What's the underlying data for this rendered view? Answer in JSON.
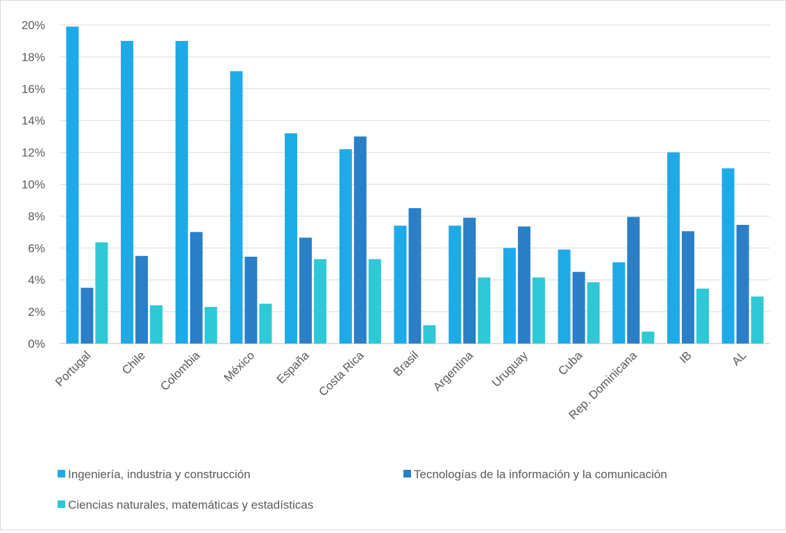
{
  "chart_data": {
    "type": "bar",
    "categories": [
      "Portugal",
      "Chile",
      "Colombia",
      "México",
      "España",
      "Costa Rica",
      "Brasil",
      "Argentina",
      "Uruguay",
      "Cuba",
      "Rep. Dominicana",
      "IB",
      "AL"
    ],
    "series": [
      {
        "name": "Ingeniería, industria y construcción",
        "color": "#1eaae7",
        "values": [
          19.9,
          19.0,
          19.0,
          17.1,
          13.2,
          12.2,
          7.4,
          7.4,
          6.0,
          5.9,
          5.1,
          12.0,
          11.0
        ]
      },
      {
        "name": "Tecnologías de la información y la comunicación",
        "color": "#2a7fc7",
        "values": [
          3.5,
          5.5,
          7.0,
          5.45,
          6.65,
          13.0,
          8.5,
          7.9,
          7.35,
          4.5,
          7.95,
          7.05,
          7.45
        ]
      },
      {
        "name": "Ciencias naturales, matemáticas y estadísticas",
        "color": "#2ec8d6",
        "values": [
          6.35,
          2.4,
          2.3,
          2.5,
          5.3,
          5.3,
          1.15,
          4.15,
          4.15,
          3.85,
          0.75,
          3.45,
          2.95
        ]
      }
    ],
    "ylim": [
      0,
      20
    ],
    "yticks": [
      0,
      2,
      4,
      6,
      8,
      10,
      12,
      14,
      16,
      18,
      20
    ],
    "ytick_labels": [
      "0%",
      "2%",
      "4%",
      "6%",
      "8%",
      "10%",
      "12%",
      "14%",
      "16%",
      "18%",
      "20%"
    ],
    "grid": true,
    "legend_position": "bottom",
    "title": "",
    "xlabel": "",
    "ylabel": ""
  }
}
